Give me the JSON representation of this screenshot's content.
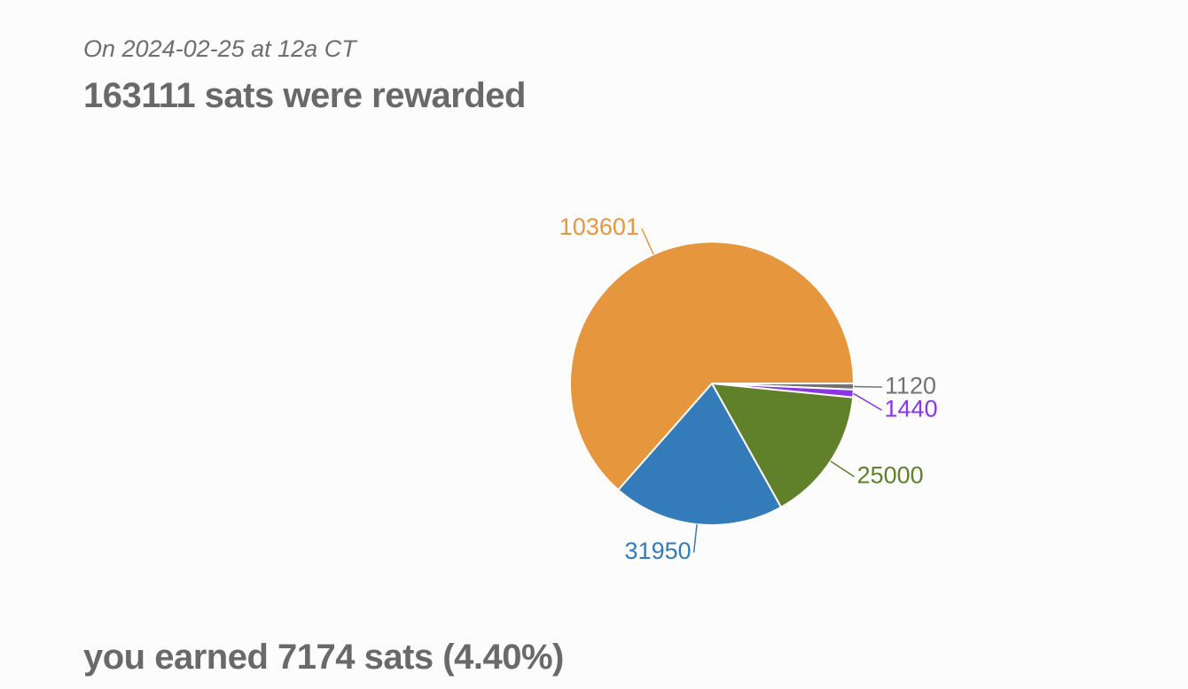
{
  "header": {
    "subtitle": "On 2024-02-25 at 12a CT",
    "title": "163111 sats were rewarded"
  },
  "chart_data": {
    "type": "pie",
    "values": [
      1120,
      1440,
      25000,
      31950,
      103601
    ],
    "colors": [
      "#727272",
      "#8a35e8",
      "#60812a",
      "#347bba",
      "#e6963d"
    ]
  },
  "footer": {
    "text": "you earned 7174 sats (4.40%)"
  }
}
